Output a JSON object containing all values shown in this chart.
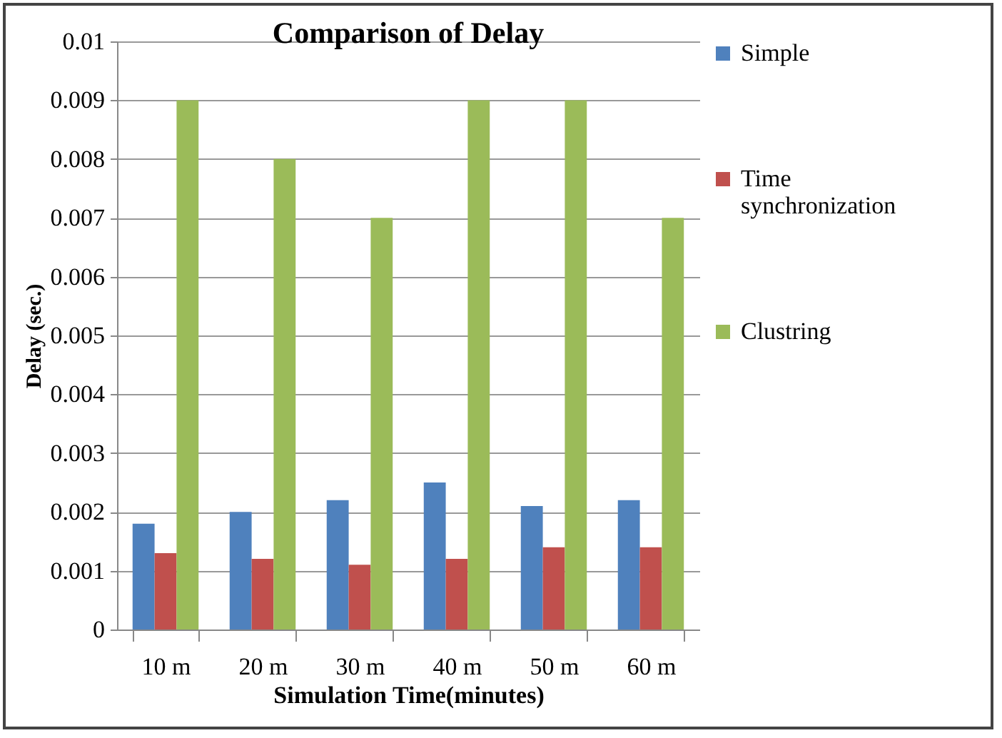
{
  "chart_data": {
    "type": "bar",
    "title": "Comparison  of Delay",
    "xlabel": "Simulation Time(minutes)",
    "ylabel": "Delay (sec.)",
    "categories": [
      "10 m",
      "20 m",
      "30 m",
      "40 m",
      "50 m",
      "60 m"
    ],
    "series": [
      {
        "name": "Simple",
        "color": "#4f81bd",
        "values": [
          0.0018,
          0.002,
          0.0022,
          0.0025,
          0.0021,
          0.0022
        ]
      },
      {
        "name": "Time synchronization",
        "color": "#c0504d",
        "values": [
          0.0013,
          0.0012,
          0.0011,
          0.0012,
          0.0014,
          0.0014
        ]
      },
      {
        "name": "Clustring",
        "color": "#9bbb59",
        "values": [
          0.009,
          0.008,
          0.007,
          0.009,
          0.009,
          0.007
        ]
      }
    ],
    "ylim": [
      0,
      0.01
    ],
    "yticks": [
      0,
      0.001,
      0.002,
      0.003,
      0.004,
      0.005,
      0.006,
      0.007,
      0.008,
      0.009,
      0.01
    ],
    "grid": "y",
    "legend": "right"
  }
}
